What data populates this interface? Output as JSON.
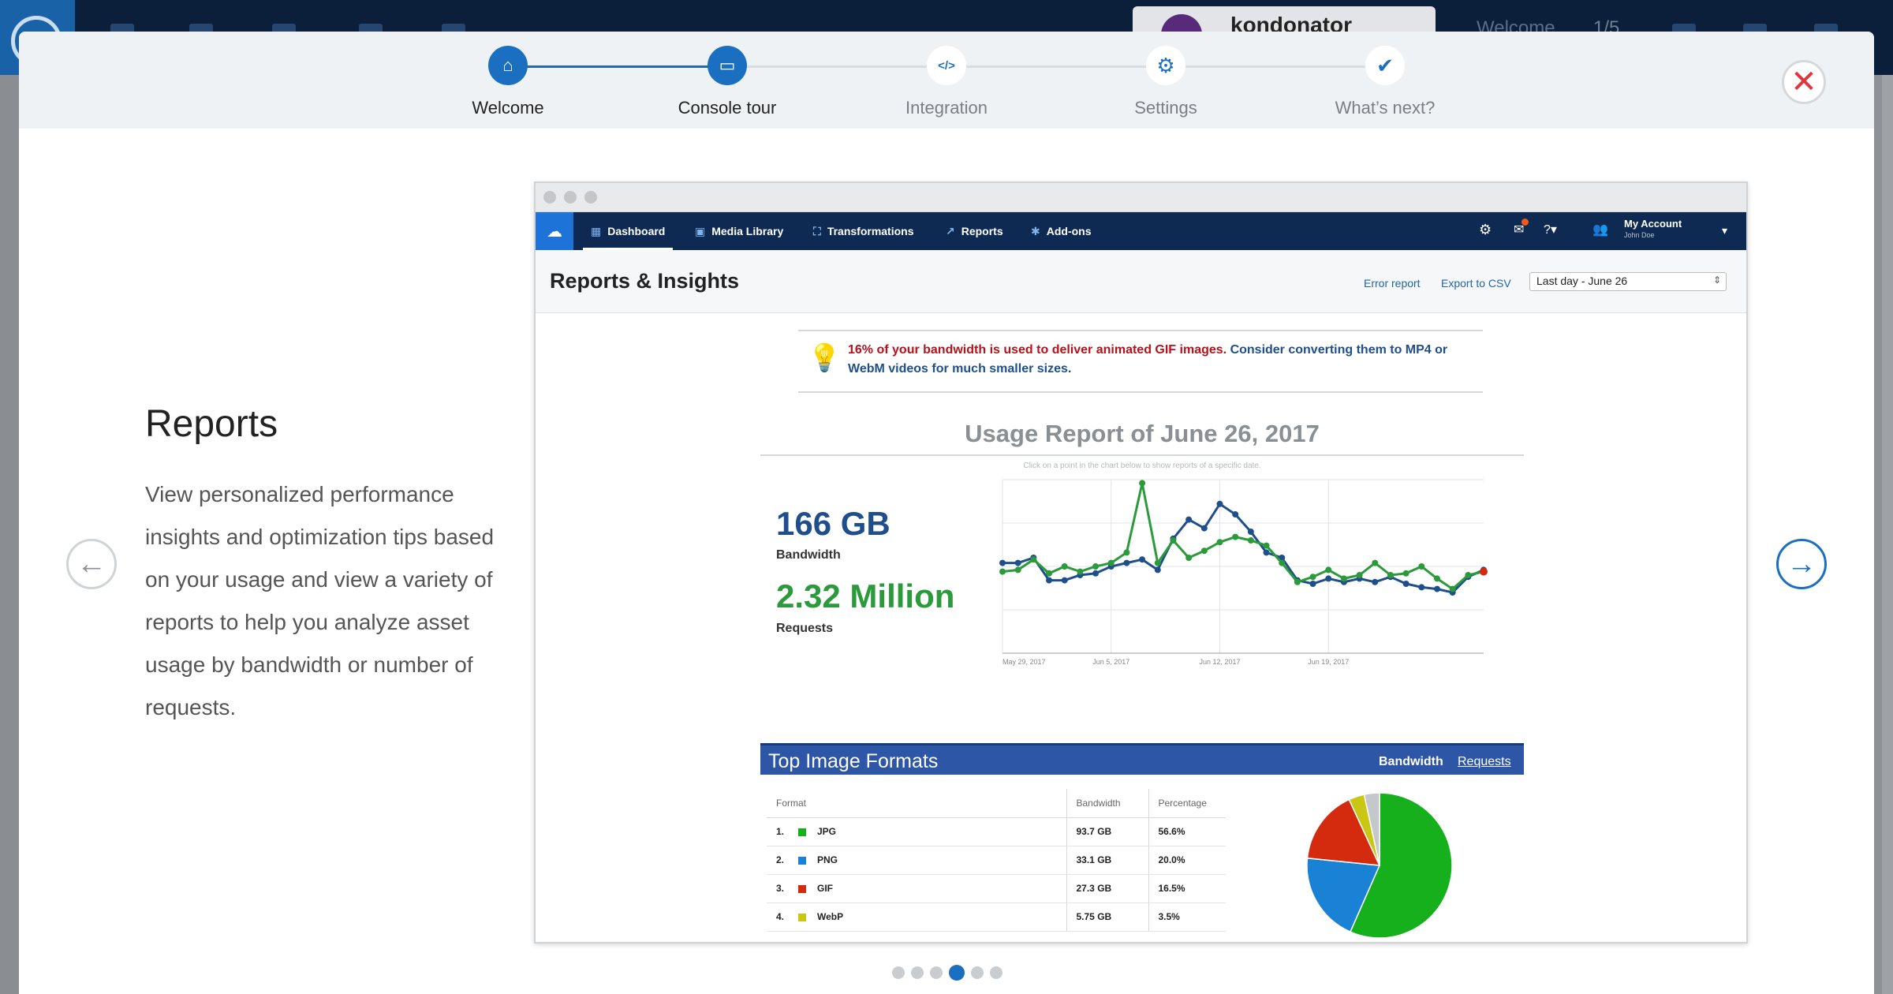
{
  "background": {
    "account_name": "kondonator",
    "welcome": "Welcome",
    "progress": "1/5"
  },
  "steps": [
    {
      "label": "Welcome",
      "icon": "home-icon",
      "glyph": "⌂",
      "state": "done"
    },
    {
      "label": "Console tour",
      "icon": "monitor-icon",
      "glyph": "▭",
      "state": "active"
    },
    {
      "label": "Integration",
      "icon": "code-icon",
      "glyph": "</>",
      "state": "pending"
    },
    {
      "label": "Settings",
      "icon": "gear-icon",
      "glyph": "⚙",
      "state": "pending"
    },
    {
      "label": "What’s next?",
      "icon": "check-icon",
      "glyph": "✔",
      "state": "pending"
    }
  ],
  "close_glyph": "✕",
  "section": {
    "title": "Reports",
    "description": "View personalized performance insights and optimization tips based on your usage and view a variety of reports to help you analyze asset usage by bandwidth or number of requests."
  },
  "nav": {
    "prev_glyph": "←",
    "next_glyph": "→"
  },
  "pagination": {
    "total": 6,
    "active": 3
  },
  "preview": {
    "nav_items": [
      {
        "label": "Dashboard",
        "icon": "dashboard-icon",
        "glyph": "▦",
        "active": true
      },
      {
        "label": "Media Library",
        "icon": "media-library-icon",
        "glyph": "▣",
        "active": false
      },
      {
        "label": "Transformations",
        "icon": "transformations-icon",
        "glyph": "⛶",
        "active": false
      },
      {
        "label": "Reports",
        "icon": "reports-icon",
        "glyph": "↗",
        "active": false
      },
      {
        "label": "Add-ons",
        "icon": "addons-icon",
        "glyph": "✱",
        "active": false
      }
    ],
    "account": {
      "name": "My Account",
      "user": "John Doe"
    },
    "page_title": "Reports & Insights",
    "links": {
      "error_report": "Error report",
      "export_csv": "Export to CSV"
    },
    "date_select": "Last day - June 26",
    "tip": {
      "warning": "16% of your bandwidth is used to deliver animated GIF images.",
      "advice": "Consider converting them to MP4 or WebM videos for much smaller sizes."
    },
    "usage": {
      "title": "Usage Report of June 26, 2017",
      "hint": "Click on a point in the chart below to show reports of a specific date.",
      "bandwidth_value": "166 GB",
      "bandwidth_label": "Bandwidth",
      "requests_value": "2.32 Million",
      "requests_label": "Requests"
    },
    "formats": {
      "title": "Top Image Formats",
      "tab_bandwidth": "Bandwidth",
      "tab_requests": "Requests",
      "columns": [
        "Format",
        "Bandwidth",
        "Percentage"
      ],
      "rows": [
        {
          "rank": "1.",
          "name": "JPG",
          "bandwidth": "93.7 GB",
          "percentage": "56.6%",
          "color": "#16b01c"
        },
        {
          "rank": "2.",
          "name": "PNG",
          "bandwidth": "33.1 GB",
          "percentage": "20.0%",
          "color": "#1a82d4"
        },
        {
          "rank": "3.",
          "name": "GIF",
          "bandwidth": "27.3 GB",
          "percentage": "16.5%",
          "color": "#d42b0f"
        },
        {
          "rank": "4.",
          "name": "WebP",
          "bandwidth": "5.75 GB",
          "percentage": "3.5%",
          "color": "#c9c714"
        }
      ]
    }
  },
  "chart_data": [
    {
      "type": "line",
      "x_tick_labels": [
        "May 29, 2017",
        "Jun 5, 2017",
        "Jun 12, 2017",
        "Jun 19, 2017"
      ],
      "x_tick_index": [
        0,
        7,
        14,
        21
      ],
      "grid": true,
      "ylim": [
        0,
        100
      ],
      "series": [
        {
          "color": "#1f4e8c",
          "values": [
            52,
            52,
            55,
            42,
            42,
            45,
            46,
            50,
            52,
            54,
            48,
            66,
            77,
            72,
            86,
            80,
            70,
            58,
            55,
            42,
            40,
            43,
            41,
            43,
            41,
            44,
            40,
            38,
            37,
            35,
            44,
            48
          ]
        },
        {
          "color": "#2a9a3a",
          "values": [
            47,
            48,
            54,
            46,
            50,
            47,
            50,
            52,
            58,
            98,
            52,
            65,
            55,
            59,
            64,
            67,
            65,
            62,
            52,
            41,
            44,
            48,
            43,
            45,
            52,
            45,
            46,
            50,
            43,
            37,
            45,
            47
          ]
        }
      ]
    },
    {
      "type": "pie",
      "categories": [
        "JPG",
        "PNG",
        "GIF",
        "WebP",
        "Other"
      ],
      "values": [
        56.6,
        20.0,
        16.5,
        3.5,
        3.4
      ],
      "colors": [
        "#16b01c",
        "#1a82d4",
        "#d42b0f",
        "#c9c714",
        "#c5c8cb"
      ]
    }
  ]
}
